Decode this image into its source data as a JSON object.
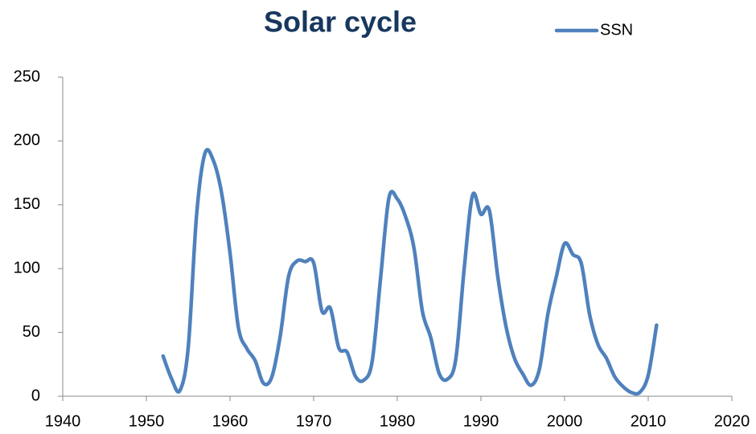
{
  "chart_data": {
    "type": "line",
    "title": "Solar cycle",
    "x": [
      1952,
      1953,
      1954,
      1955,
      1956,
      1957,
      1958,
      1959,
      1960,
      1961,
      1962,
      1963,
      1964,
      1965,
      1966,
      1967,
      1968,
      1969,
      1970,
      1971,
      1972,
      1973,
      1974,
      1975,
      1976,
      1977,
      1978,
      1979,
      1980,
      1981,
      1982,
      1983,
      1984,
      1985,
      1986,
      1987,
      1988,
      1989,
      1990,
      1991,
      1992,
      1993,
      1994,
      1995,
      1996,
      1997,
      1998,
      1999,
      2000,
      2001,
      2002,
      2003,
      2004,
      2005,
      2006,
      2007,
      2008,
      2009,
      2010,
      2011
    ],
    "series": [
      {
        "name": "SSN",
        "color": "#4f81bd",
        "values": [
          31.5,
          13.9,
          4.4,
          38,
          141.7,
          190.2,
          184.8,
          159,
          112.3,
          53.9,
          37.5,
          27.9,
          10.2,
          15.1,
          47,
          93.8,
          105.9,
          105.5,
          104.5,
          66.6,
          68.9,
          38,
          34.5,
          15.5,
          12.6,
          27.5,
          92.5,
          155.4,
          154.6,
          140.4,
          115.9,
          66.6,
          45.9,
          17.9,
          13.4,
          29.4,
          100.2,
          157.6,
          142.6,
          145.7,
          94.3,
          54.6,
          29.9,
          17.5,
          8.6,
          21.5,
          64.3,
          93.3,
          119.6,
          111,
          104,
          63.7,
          40.4,
          29.8,
          15.2,
          7.5,
          2.9,
          3.1,
          16.5,
          55.7
        ]
      }
    ],
    "xlim": [
      1940,
      2020
    ],
    "xticks": [
      1940,
      1950,
      1960,
      1970,
      1980,
      1990,
      2000,
      2010,
      2020
    ],
    "ylim": [
      0,
      250
    ],
    "yticks": [
      0,
      50,
      100,
      150,
      200,
      250
    ],
    "grid": false,
    "legend": "top-right",
    "smooth": true
  }
}
